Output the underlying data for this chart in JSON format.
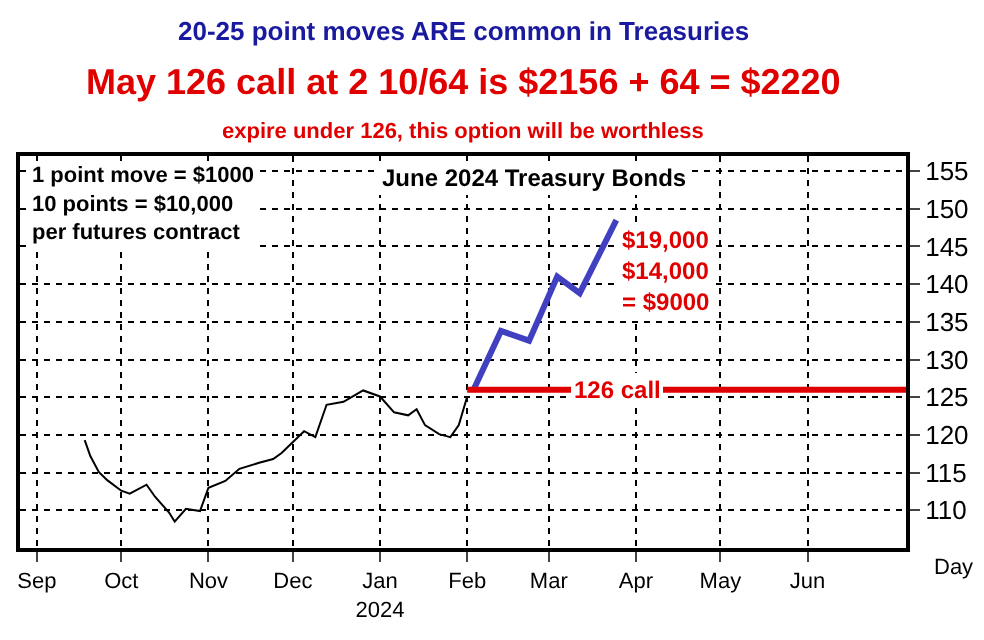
{
  "chart_data": {
    "type": "line",
    "title": "20-25 point moves ARE common in Treasuries",
    "subtitle": "May 126 call at 2 10/64 is $2156 + 64 = $2220",
    "annotations": [
      "expire under 126, this option will be worthless",
      "June 2024 Treasury Bonds",
      "1 point move = $1000\n10 points = $10,000\nper futures contract",
      "$19,000\n$14,000\n= $9000",
      "Day",
      {
        "text": "126 call",
        "x": "2024-03-25",
        "y": 126
      }
    ],
    "series": [
      {
        "color": "#000000",
        "x": [
          "2023-09-18",
          "2023-09-20",
          "2023-09-23",
          "2023-09-26",
          "2023-10-01",
          "2023-10-04",
          "2023-10-10",
          "2023-10-13",
          "2023-10-18",
          "2023-10-20",
          "2023-10-24",
          "2023-10-29",
          "2023-11-01",
          "2023-11-07",
          "2023-11-12",
          "2023-11-19",
          "2023-11-24",
          "2023-11-27",
          "2023-12-05",
          "2023-12-09",
          "2023-12-13",
          "2023-12-19",
          "2023-12-26",
          "2024-01-01",
          "2024-01-06",
          "2024-01-11",
          "2024-01-14",
          "2024-01-17",
          "2024-01-22",
          "2024-01-26",
          "2024-01-29",
          "2024-02-01"
        ],
        "values": [
          119.3,
          117.2,
          115.1,
          114,
          112.6,
          112.2,
          113.4,
          111.8,
          109.7,
          108.5,
          110.2,
          109.9,
          113,
          113.9,
          115.5,
          116.3,
          116.8,
          117.6,
          120.5,
          119.7,
          124,
          124.4,
          125.9,
          125.1,
          123,
          122.6,
          123.4,
          121.3,
          120.1,
          119.7,
          121.3,
          125.1
        ]
      },
      {
        "color": "#4040c0",
        "x": [
          "2024-02-03",
          "2024-02-13",
          "2024-02-23",
          "2024-03-04",
          "2024-03-12",
          "2024-03-25"
        ],
        "values": [
          125.8,
          133.8,
          132.5,
          141,
          138.8,
          148.5
        ]
      },
      {
        "color": "#e00000",
        "x": [
          "2024-02-01",
          "2024-07-06"
        ],
        "values": [
          126,
          126
        ]
      }
    ],
    "xlim": [
      "2023-08-26",
      "2024-07-06"
    ],
    "xticks": [
      {
        "value": "2023-09-01",
        "label": "Sep"
      },
      {
        "value": "2023-10-01",
        "label": "Oct"
      },
      {
        "value": "2023-11-01",
        "label": "Nov"
      },
      {
        "value": "2023-12-01",
        "label": "Dec"
      },
      {
        "value": "2024-01-01",
        "label": "Jan\n2024"
      },
      {
        "value": "2024-02-01",
        "label": "Feb"
      },
      {
        "value": "2024-03-01",
        "label": "Mar"
      },
      {
        "value": "2024-04-01",
        "label": "Apr"
      },
      {
        "value": "2024-05-01",
        "label": "May"
      },
      {
        "value": "2024-06-01",
        "label": "Jun"
      }
    ],
    "ylim": [
      105,
      157
    ],
    "yticks": [
      110,
      115,
      120,
      125,
      130,
      135,
      140,
      145,
      150,
      155
    ],
    "grid": true,
    "marker": "none"
  }
}
